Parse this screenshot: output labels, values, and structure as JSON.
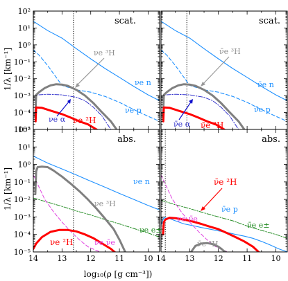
{
  "chart_data": [
    {
      "type": "line",
      "panel_label": "scat.",
      "xlabel": "",
      "ylabel": "1/λ [km⁻¹]",
      "xlim": [
        14,
        9.6
      ],
      "ylim": [
        1e-05,
        100
      ],
      "y_scale": "log",
      "x_ticks": [],
      "y_ticks": [
        "10⁻⁵",
        "10⁻⁴",
        "10⁻³",
        "10⁻²",
        "10⁻¹",
        "10⁰",
        "10¹",
        "10²"
      ],
      "vline_x": 12.6,
      "series": [
        {
          "name": "νe n",
          "color": "#1e90ff",
          "style": "solid",
          "width": 1.1,
          "x": [
            14.0,
            13.5,
            13.0,
            12.5,
            12.0,
            11.5,
            11.0,
            10.5,
            10.0,
            9.6
          ],
          "y": [
            25,
            7,
            2.5,
            0.6,
            0.15,
            0.04,
            0.012,
            0.0035,
            0.0011,
            0.0005
          ]
        },
        {
          "name": "νe p",
          "color": "#1e90ff",
          "style": "dashed",
          "width": 1.1,
          "x": [
            14.0,
            13.8,
            13.5,
            13.0,
            12.5,
            12.0,
            11.5,
            11.0,
            10.5,
            10.0,
            9.6
          ],
          "y": [
            0.5,
            0.25,
            0.06,
            0.004,
            0.0022,
            0.0016,
            0.0009,
            0.0004,
            0.00015,
            6e-05,
            3e-05
          ]
        },
        {
          "name": "νe α",
          "color": "#3333cc",
          "style": "dashdot",
          "width": 1.0,
          "x": [
            13.95,
            13.93,
            13.85,
            13.5,
            13.0,
            12.5,
            12.2,
            11.9,
            11.6,
            11.3
          ],
          "y": [
            6e-05,
            0.0009,
            0.0011,
            0.0012,
            0.0011,
            0.0008,
            0.0005,
            0.0002,
            6e-05,
            1e-05
          ]
        },
        {
          "name": "νe ³H",
          "color": "#808080",
          "style": "solid",
          "width": 3.0,
          "x": [
            13.93,
            13.9,
            13.8,
            13.6,
            13.4,
            13.2,
            13.0,
            12.8,
            12.5,
            12.2,
            11.9,
            11.6,
            11.3,
            11.1
          ],
          "y": [
            6e-05,
            0.0011,
            0.0016,
            0.0028,
            0.004,
            0.0047,
            0.0045,
            0.0038,
            0.0022,
            0.001,
            0.00035,
            0.0001,
            3e-05,
            1e-05
          ]
        },
        {
          "name": "νe ²H",
          "color": "#ff0000",
          "style": "solid",
          "width": 3.0,
          "x": [
            13.92,
            13.9,
            13.7,
            13.4,
            13.0,
            12.7,
            12.4,
            12.1,
            11.8,
            11.5
          ],
          "y": [
            3e-05,
            0.0002,
            0.00019,
            0.00013,
            8e-05,
            5e-05,
            3e-05,
            2e-05,
            1e-05,
            5e-06
          ]
        }
      ],
      "annotations": [
        "νe ³H",
        "νe n",
        "νe p",
        "νe α",
        "νe ²H"
      ]
    },
    {
      "type": "line",
      "panel_label": "scat.",
      "xlabel": "",
      "ylabel": "",
      "xlim": [
        14,
        9.6
      ],
      "ylim": [
        1e-05,
        100
      ],
      "y_scale": "log",
      "x_ticks": [],
      "y_ticks": [],
      "vline_x": 13.1,
      "series": [
        {
          "name": "ν̄e n",
          "color": "#1e90ff",
          "style": "solid",
          "width": 1.1,
          "x": [
            14.0,
            13.5,
            13.0,
            12.5,
            12.0,
            11.5,
            11.0,
            10.5,
            10.0,
            9.6
          ],
          "y": [
            25,
            7,
            2.5,
            0.6,
            0.15,
            0.04,
            0.012,
            0.0035,
            0.0011,
            0.0005
          ]
        },
        {
          "name": "ν̄e p",
          "color": "#1e90ff",
          "style": "dashed",
          "width": 1.1,
          "x": [
            14.0,
            13.8,
            13.5,
            13.0,
            12.5,
            12.0,
            11.5,
            11.0,
            10.5,
            10.0,
            9.6
          ],
          "y": [
            0.5,
            0.25,
            0.06,
            0.004,
            0.0022,
            0.0016,
            0.0009,
            0.0004,
            0.00015,
            6e-05,
            3e-05
          ]
        },
        {
          "name": "ν̄e α",
          "color": "#3333cc",
          "style": "dashdot",
          "width": 1.0,
          "x": [
            13.95,
            13.93,
            13.85,
            13.5,
            13.0,
            12.5,
            12.2,
            11.9,
            11.6,
            11.3
          ],
          "y": [
            6e-05,
            0.0009,
            0.0011,
            0.0012,
            0.0011,
            0.0008,
            0.0005,
            0.0002,
            6e-05,
            1e-05
          ]
        },
        {
          "name": "ν̄e ³H",
          "color": "#808080",
          "style": "solid",
          "width": 3.0,
          "x": [
            13.93,
            13.9,
            13.8,
            13.6,
            13.4,
            13.2,
            13.0,
            12.8,
            12.5,
            12.2,
            11.9,
            11.6,
            11.3,
            11.1
          ],
          "y": [
            6e-05,
            0.0011,
            0.0016,
            0.0028,
            0.004,
            0.0047,
            0.0045,
            0.0038,
            0.0022,
            0.001,
            0.00035,
            0.0001,
            3e-05,
            1e-05
          ]
        },
        {
          "name": "ν̄e ²H",
          "color": "#ff0000",
          "style": "solid",
          "width": 3.0,
          "x": [
            13.92,
            13.9,
            13.7,
            13.4,
            13.0,
            12.7,
            12.4,
            12.1,
            11.8,
            11.5
          ],
          "y": [
            3e-05,
            0.0002,
            0.00019,
            0.00013,
            8e-05,
            5e-05,
            3e-05,
            2e-05,
            1e-05,
            5e-06
          ]
        }
      ],
      "annotations": [
        "ν̄e ³H",
        "ν̄e n",
        "ν̄e p",
        "ν̄e α",
        "ν̄e ²H"
      ]
    },
    {
      "type": "line",
      "panel_label": "abs.",
      "xlabel": "log₁₀(ρ [g cm⁻³])",
      "ylabel": "1/λ [km⁻¹]",
      "xlim": [
        14,
        9.6
      ],
      "ylim": [
        1e-05,
        100
      ],
      "y_scale": "log",
      "x_ticks": [
        "14",
        "13",
        "12",
        "11",
        "10"
      ],
      "y_ticks": [
        "10⁻⁵",
        "10⁻⁴",
        "10⁻³",
        "10⁻²",
        "10⁻¹",
        "10⁰",
        "10¹",
        "10²"
      ],
      "vline_x": 12.6,
      "series": [
        {
          "name": "νe n",
          "color": "#1e90ff",
          "style": "solid",
          "width": 1.1,
          "x": [
            14.0,
            13.5,
            13.0,
            12.5,
            12.0,
            11.5,
            11.0,
            10.5,
            10.0,
            9.6
          ],
          "y": [
            3.0,
            1.2,
            0.55,
            0.25,
            0.11,
            0.05,
            0.022,
            0.01,
            0.0045,
            0.0025
          ]
        },
        {
          "name": "νe e±",
          "color": "#228b22",
          "style": "dashdot",
          "width": 1.0,
          "x": [
            14.0,
            13.5,
            13.0,
            12.5,
            12.0,
            11.5,
            11.0,
            10.5,
            10.0,
            9.6
          ],
          "y": [
            0.012,
            0.007,
            0.004,
            0.0022,
            0.0013,
            0.0007,
            0.0004,
            0.00022,
            0.00012,
            7e-05
          ]
        },
        {
          "name": "νe ν̄e",
          "color": "#e040e0",
          "style": "dashed",
          "width": 1.0,
          "x": [
            14.0,
            13.8,
            13.6,
            13.3,
            13.0,
            12.7,
            12.4,
            12.1,
            11.8,
            11.5,
            11.2
          ],
          "y": [
            0.25,
            0.05,
            0.01,
            0.002,
            0.0005,
            0.00015,
            5e-05,
            2e-05,
            1.2e-05,
            8e-06,
            6e-06
          ]
        },
        {
          "name": "νe ³H",
          "color": "#808080",
          "style": "solid",
          "width": 3.0,
          "x": [
            13.93,
            13.9,
            13.85,
            13.7,
            13.5,
            13.3,
            13.0,
            12.7,
            12.4,
            12.1,
            11.8,
            11.5,
            11.2,
            11.0,
            10.8
          ],
          "y": [
            0.02,
            0.4,
            0.7,
            0.75,
            0.7,
            0.45,
            0.2,
            0.08,
            0.03,
            0.01,
            0.003,
            0.0008,
            0.0002,
            5e-05,
            1e-05
          ]
        },
        {
          "name": "νe ²H",
          "color": "#ff0000",
          "style": "solid",
          "width": 3.0,
          "x": [
            14.0,
            13.9,
            13.7,
            13.4,
            13.1,
            12.8,
            12.5,
            12.2,
            11.9,
            11.6,
            11.3,
            11.1
          ],
          "y": [
            1.5e-05,
            3e-05,
            7e-05,
            0.00014,
            0.00018,
            0.00018,
            0.00015,
            0.0001,
            6e-05,
            3e-05,
            1.5e-05,
            8e-06
          ]
        }
      ],
      "annotations": [
        "νe n",
        "νe ³H",
        "νe e±",
        "νe ²H",
        "νe ν̄e"
      ]
    },
    {
      "type": "line",
      "panel_label": "abs.",
      "xlabel": "",
      "ylabel": "",
      "xlim": [
        14,
        9.6
      ],
      "ylim": [
        1e-05,
        100
      ],
      "y_scale": "log",
      "x_ticks": [
        "14",
        "13",
        "12",
        "11",
        "10"
      ],
      "y_ticks": [],
      "vline_x": 13.85,
      "series": [
        {
          "name": "ν̄e p",
          "color": "#1e90ff",
          "style": "solid",
          "width": 1.1,
          "x": [
            14.0,
            13.9,
            13.7,
            13.5,
            13.2,
            12.9,
            12.6,
            12.3,
            12.0,
            11.7,
            11.4,
            11.1,
            10.8,
            10.5,
            10.2,
            9.9,
            9.6
          ],
          "y": [
            0.00035,
            0.0009,
            0.0008,
            0.0006,
            0.0004,
            0.00032,
            0.00025,
            0.0002,
            0.00016,
            0.00013,
            0.0001,
            8e-05,
            6e-05,
            4e-05,
            2.5e-05,
            1.5e-05,
            1e-05
          ]
        },
        {
          "name": "ν̄e e±",
          "color": "#228b22",
          "style": "dashdot",
          "width": 1.0,
          "x": [
            14.0,
            13.5,
            13.0,
            12.5,
            12.0,
            11.5,
            11.0,
            10.5,
            10.0,
            9.6
          ],
          "y": [
            0.009,
            0.005,
            0.003,
            0.0017,
            0.001,
            0.0006,
            0.0003,
            0.00017,
            0.0001,
            6e-05
          ]
        },
        {
          "name": "νe ν̄e",
          "color": "#e040e0",
          "style": "dashed",
          "width": 1.0,
          "x": [
            14.0,
            13.8,
            13.6,
            13.3,
            13.0,
            12.7,
            12.4,
            12.1,
            11.8,
            11.5,
            11.2
          ],
          "y": [
            0.25,
            0.05,
            0.01,
            0.002,
            0.0005,
            0.00015,
            5e-05,
            2e-05,
            1.2e-05,
            8e-06,
            6e-06
          ]
        },
        {
          "name": "ν̄e ²H",
          "color": "#ff0000",
          "style": "solid",
          "width": 3.0,
          "x": [
            13.93,
            13.9,
            13.85,
            13.7,
            13.5,
            13.2,
            12.9,
            12.6,
            12.3,
            12.0,
            11.7,
            11.4,
            11.1,
            10.8,
            10.6
          ],
          "y": [
            0.0001,
            0.0005,
            0.0007,
            0.0009,
            0.00085,
            0.0007,
            0.00055,
            0.0004,
            0.00028,
            0.0002,
            0.00012,
            7e-05,
            4e-05,
            2e-05,
            1e-05
          ]
        },
        {
          "name": "ν̄e ³H",
          "color": "#808080",
          "style": "solid",
          "width": 3.0,
          "x": [
            12.95,
            12.8,
            12.6,
            12.4,
            12.2,
            12.0,
            11.9,
            11.8,
            11.75
          ],
          "y": [
            1e-05,
            2.2e-05,
            3e-05,
            3.2e-05,
            2.8e-05,
            2e-05,
            1.5e-05,
            1.1e-05,
            1e-05
          ]
        }
      ],
      "annotations": [
        "ν̄e ²H",
        "ν̄e p",
        "ν̄e e±",
        "νe ν̄e",
        "ν̄e ³H"
      ]
    }
  ]
}
